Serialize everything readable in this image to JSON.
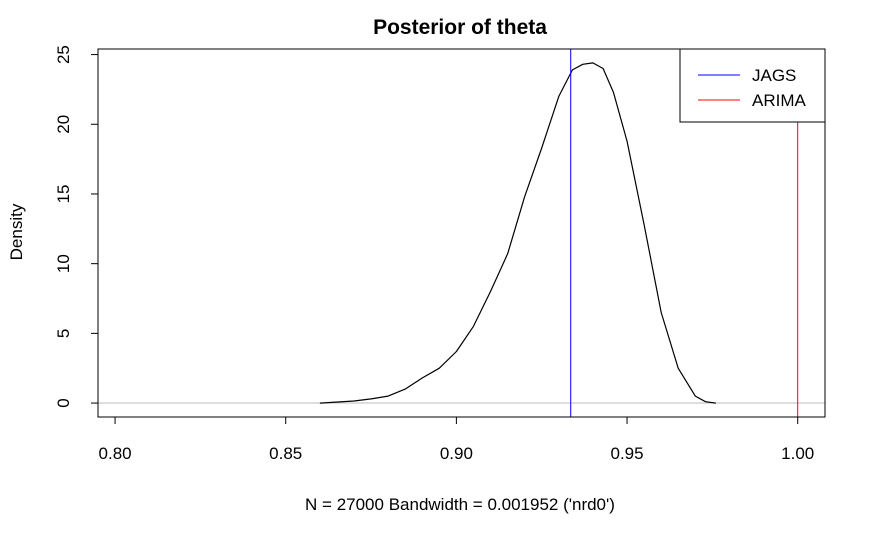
{
  "chart_data": {
    "type": "line",
    "title": "Posterior of theta",
    "xlabel": "N = 27000   Bandwidth = 0.001952 ('nrd0')",
    "ylabel": "Density",
    "xlim": [
      0.795,
      1.008
    ],
    "ylim": [
      -1.0,
      25.4
    ],
    "x_ticks": [
      "0.80",
      "0.85",
      "0.90",
      "0.95",
      "1.00"
    ],
    "x_tick_values": [
      0.8,
      0.85,
      0.9,
      0.95,
      1.0
    ],
    "y_ticks": [
      "0",
      "5",
      "10",
      "15",
      "20",
      "25"
    ],
    "y_tick_values": [
      0,
      5,
      10,
      15,
      20,
      25
    ],
    "grid": false,
    "legend_position": "top-right",
    "series": [
      {
        "name": "density",
        "color": "#000000",
        "x": [
          0.86,
          0.87,
          0.875,
          0.88,
          0.885,
          0.89,
          0.895,
          0.9,
          0.905,
          0.91,
          0.915,
          0.92,
          0.925,
          0.93,
          0.934,
          0.937,
          0.94,
          0.943,
          0.946,
          0.95,
          0.955,
          0.96,
          0.965,
          0.97,
          0.973,
          0.976
        ],
        "y": [
          0.0,
          0.15,
          0.3,
          0.5,
          1.0,
          1.8,
          2.5,
          3.7,
          5.5,
          8.0,
          10.7,
          14.8,
          18.3,
          22.0,
          23.9,
          24.3,
          24.4,
          24.0,
          22.3,
          18.8,
          12.8,
          6.5,
          2.5,
          0.5,
          0.1,
          0.0
        ]
      }
    ],
    "vlines": [
      {
        "name": "JAGS",
        "x": 0.9335,
        "color": "#0000ff"
      },
      {
        "name": "ARIMA",
        "x": 1.0,
        "color": "#ff0000"
      }
    ],
    "hline": {
      "y": 0,
      "color": "#bebebe"
    }
  }
}
